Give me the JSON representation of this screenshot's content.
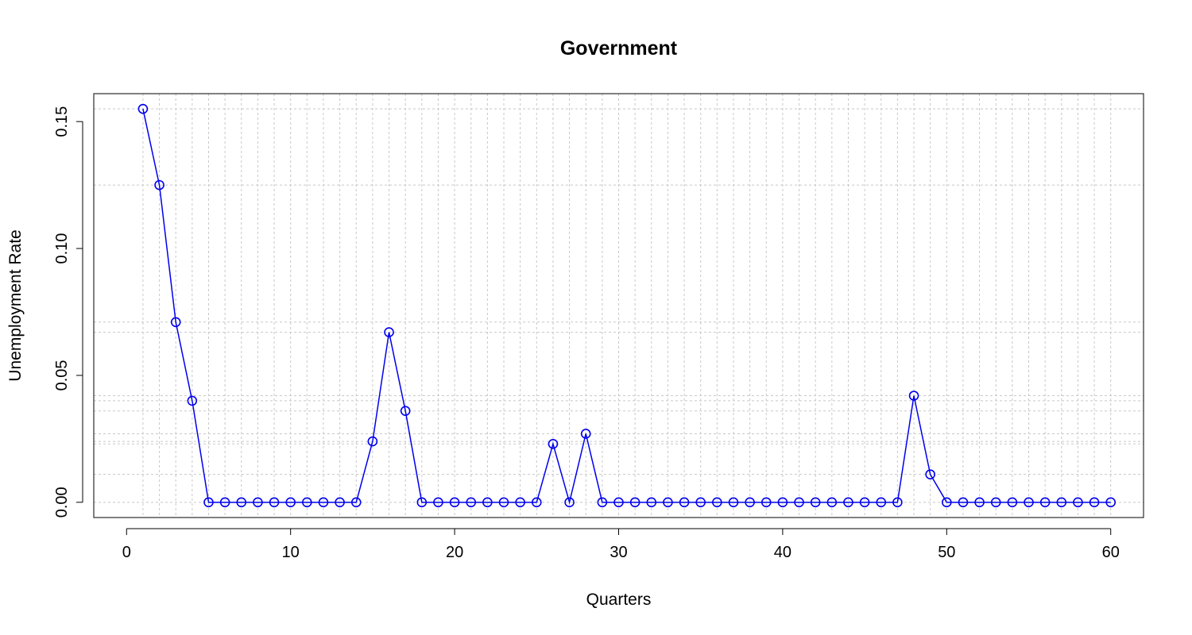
{
  "chart_data": {
    "type": "line",
    "title": "Government",
    "xlabel": "Quarters",
    "ylabel": "Unemployment Rate",
    "xlim": [
      -2,
      62
    ],
    "ylim": [
      -0.006,
      0.161
    ],
    "xticks": [
      0,
      10,
      20,
      30,
      40,
      50,
      60
    ],
    "xtick_labels": [
      "0",
      "10",
      "20",
      "30",
      "40",
      "50",
      "60"
    ],
    "yticks": [
      0.0,
      0.05,
      0.1,
      0.15
    ],
    "ytick_labels": [
      "0.00",
      "0.05",
      "0.10",
      "0.15"
    ],
    "grid": true,
    "x": [
      1,
      2,
      3,
      4,
      5,
      6,
      7,
      8,
      9,
      10,
      11,
      12,
      13,
      14,
      15,
      16,
      17,
      18,
      19,
      20,
      21,
      22,
      23,
      24,
      25,
      26,
      27,
      28,
      29,
      30,
      31,
      32,
      33,
      34,
      35,
      36,
      37,
      38,
      39,
      40,
      41,
      42,
      43,
      44,
      45,
      46,
      47,
      48,
      49,
      50,
      51,
      52,
      53,
      54,
      55,
      56,
      57,
      58,
      59,
      60
    ],
    "series": [
      {
        "color": "#0000ee",
        "marker": "circle",
        "values": [
          0.155,
          0.125,
          0.071,
          0.04,
          0,
          0,
          0,
          0,
          0,
          0,
          0,
          0,
          0,
          0,
          0.024,
          0.067,
          0.036,
          0,
          0,
          0,
          0,
          0,
          0,
          0,
          0,
          0.023,
          0,
          0.027,
          0,
          0,
          0,
          0,
          0,
          0,
          0,
          0,
          0,
          0,
          0,
          0,
          0,
          0,
          0,
          0,
          0,
          0,
          0,
          0.042,
          0.011,
          0,
          0,
          0,
          0,
          0,
          0,
          0,
          0,
          0,
          0,
          0
        ]
      }
    ]
  }
}
